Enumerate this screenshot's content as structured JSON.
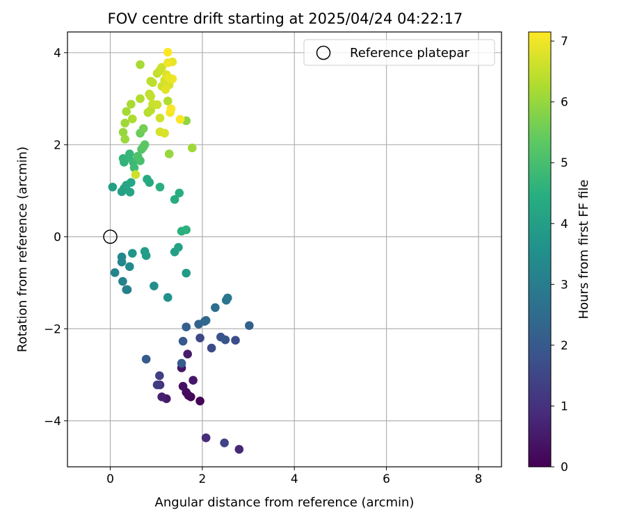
{
  "chart_data": {
    "type": "scatter",
    "title": "FOV centre drift starting at 2025/04/24 04:22:17",
    "xlabel": "Angular distance from reference (arcmin)",
    "ylabel": "Rotation from reference (arcmin)",
    "xlim": [
      -0.93,
      8.5
    ],
    "ylim": [
      -5.0,
      4.45
    ],
    "xticks": [
      0,
      2,
      4,
      6,
      8
    ],
    "yticks": [
      4,
      2,
      0,
      -2,
      -4
    ],
    "xtick_labels": [
      "0",
      "2",
      "4",
      "6",
      "8"
    ],
    "ytick_labels": [
      "4",
      "2",
      "0",
      "−2",
      "−4"
    ],
    "grid": true,
    "legend": {
      "position": "top-right",
      "entries": [
        "Reference platepar"
      ]
    },
    "reference_point": {
      "name": "Reference platepar",
      "x": 0.0,
      "y": 0.0
    },
    "colorbar": {
      "label": "Hours from first FF file",
      "colormap": "viridis",
      "range": [
        0,
        7.15
      ],
      "ticks": [
        0,
        1,
        2,
        3,
        4,
        5,
        6,
        7
      ],
      "tick_labels": [
        "0",
        "1",
        "2",
        "3",
        "4",
        "5",
        "6",
        "7"
      ]
    },
    "points": [
      {
        "x": 1.95,
        "y": -3.57,
        "t": 0.05
      },
      {
        "x": 1.75,
        "y": -3.48,
        "t": 0.12
      },
      {
        "x": 1.7,
        "y": -3.45,
        "t": 0.18
      },
      {
        "x": 1.65,
        "y": -3.38,
        "t": 0.25
      },
      {
        "x": 1.58,
        "y": -3.25,
        "t": 0.3
      },
      {
        "x": 1.55,
        "y": -2.85,
        "t": 0.4
      },
      {
        "x": 1.8,
        "y": -3.12,
        "t": 0.45
      },
      {
        "x": 1.68,
        "y": -2.55,
        "t": 0.55
      },
      {
        "x": 1.22,
        "y": -3.52,
        "t": 0.5
      },
      {
        "x": 1.12,
        "y": -3.48,
        "t": 0.65
      },
      {
        "x": 2.8,
        "y": -4.62,
        "t": 0.8
      },
      {
        "x": 2.08,
        "y": -4.37,
        "t": 0.9
      },
      {
        "x": 1.08,
        "y": -3.22,
        "t": 1.05
      },
      {
        "x": 1.02,
        "y": -3.22,
        "t": 1.25
      },
      {
        "x": 1.07,
        "y": -3.02,
        "t": 1.35
      },
      {
        "x": 2.48,
        "y": -4.48,
        "t": 1.45
      },
      {
        "x": 1.95,
        "y": -2.2,
        "t": 1.55
      },
      {
        "x": 2.2,
        "y": -2.42,
        "t": 1.6
      },
      {
        "x": 2.72,
        "y": -2.25,
        "t": 1.7
      },
      {
        "x": 2.4,
        "y": -2.18,
        "t": 1.8
      },
      {
        "x": 2.5,
        "y": -2.24,
        "t": 1.9
      },
      {
        "x": 1.58,
        "y": -2.27,
        "t": 2.0
      },
      {
        "x": 0.78,
        "y": -2.66,
        "t": 2.05
      },
      {
        "x": 1.55,
        "y": -2.75,
        "t": 2.1
      },
      {
        "x": 1.65,
        "y": -1.96,
        "t": 2.15
      },
      {
        "x": 3.02,
        "y": -1.93,
        "t": 2.2
      },
      {
        "x": 1.92,
        "y": -1.9,
        "t": 2.25
      },
      {
        "x": 2.05,
        "y": -1.84,
        "t": 2.35
      },
      {
        "x": 2.08,
        "y": -1.82,
        "t": 2.4
      },
      {
        "x": 2.28,
        "y": -1.54,
        "t": 2.55
      },
      {
        "x": 2.52,
        "y": -1.38,
        "t": 2.7
      },
      {
        "x": 2.55,
        "y": -1.33,
        "t": 2.8
      },
      {
        "x": 0.35,
        "y": -1.15,
        "t": 3.05
      },
      {
        "x": 0.37,
        "y": -1.15,
        "t": 3.1
      },
      {
        "x": 0.27,
        "y": -0.97,
        "t": 3.15
      },
      {
        "x": 0.1,
        "y": -0.78,
        "t": 3.2
      },
      {
        "x": 0.25,
        "y": -0.55,
        "t": 3.25
      },
      {
        "x": 0.25,
        "y": -0.44,
        "t": 3.3
      },
      {
        "x": 0.42,
        "y": -0.65,
        "t": 3.4
      },
      {
        "x": 0.95,
        "y": -1.07,
        "t": 3.5
      },
      {
        "x": 1.25,
        "y": -1.32,
        "t": 3.6
      },
      {
        "x": 0.48,
        "y": -0.36,
        "t": 3.7
      },
      {
        "x": 1.65,
        "y": -0.79,
        "t": 3.85
      },
      {
        "x": 0.75,
        "y": -0.32,
        "t": 3.9
      },
      {
        "x": 0.78,
        "y": -0.41,
        "t": 3.95
      },
      {
        "x": 1.4,
        "y": -0.33,
        "t": 4.0
      },
      {
        "x": 1.48,
        "y": -0.23,
        "t": 4.1
      },
      {
        "x": 1.55,
        "y": 0.12,
        "t": 4.5
      },
      {
        "x": 1.65,
        "y": 0.15,
        "t": 4.55
      },
      {
        "x": 1.4,
        "y": 0.81,
        "t": 4.4
      },
      {
        "x": 1.5,
        "y": 0.95,
        "t": 4.45
      },
      {
        "x": 0.05,
        "y": 1.08,
        "t": 4.0
      },
      {
        "x": 0.25,
        "y": 0.98,
        "t": 4.05
      },
      {
        "x": 0.3,
        "y": 1.05,
        "t": 4.1
      },
      {
        "x": 0.35,
        "y": 1.12,
        "t": 4.15
      },
      {
        "x": 0.43,
        "y": 0.97,
        "t": 4.2
      },
      {
        "x": 0.45,
        "y": 1.18,
        "t": 4.25
      },
      {
        "x": 0.85,
        "y": 1.18,
        "t": 4.3
      },
      {
        "x": 0.8,
        "y": 1.25,
        "t": 4.35
      },
      {
        "x": 1.08,
        "y": 1.08,
        "t": 4.5
      },
      {
        "x": 0.3,
        "y": 1.62,
        "t": 4.6
      },
      {
        "x": 0.28,
        "y": 1.7,
        "t": 4.65
      },
      {
        "x": 0.4,
        "y": 1.72,
        "t": 4.7
      },
      {
        "x": 0.42,
        "y": 1.8,
        "t": 4.75
      },
      {
        "x": 0.5,
        "y": 1.62,
        "t": 4.8
      },
      {
        "x": 0.52,
        "y": 1.5,
        "t": 4.85
      },
      {
        "x": 0.58,
        "y": 1.68,
        "t": 4.9
      },
      {
        "x": 0.65,
        "y": 1.65,
        "t": 5.0
      },
      {
        "x": 0.6,
        "y": 1.75,
        "t": 5.1
      },
      {
        "x": 0.68,
        "y": 1.9,
        "t": 5.2
      },
      {
        "x": 0.72,
        "y": 1.95,
        "t": 5.25
      },
      {
        "x": 0.75,
        "y": 2.0,
        "t": 5.3
      },
      {
        "x": 0.65,
        "y": 2.25,
        "t": 5.5
      },
      {
        "x": 0.72,
        "y": 2.35,
        "t": 5.6
      },
      {
        "x": 0.55,
        "y": 1.35,
        "t": 6.6
      },
      {
        "x": 1.28,
        "y": 1.8,
        "t": 6.0
      },
      {
        "x": 1.78,
        "y": 1.93,
        "t": 6.1
      },
      {
        "x": 1.65,
        "y": 2.52,
        "t": 5.9
      },
      {
        "x": 0.28,
        "y": 2.27,
        "t": 6.0
      },
      {
        "x": 0.32,
        "y": 2.12,
        "t": 6.05
      },
      {
        "x": 0.32,
        "y": 2.47,
        "t": 6.1
      },
      {
        "x": 0.35,
        "y": 2.72,
        "t": 6.15
      },
      {
        "x": 0.45,
        "y": 2.88,
        "t": 6.2
      },
      {
        "x": 0.48,
        "y": 2.56,
        "t": 6.25
      },
      {
        "x": 0.65,
        "y": 3.0,
        "t": 6.3
      },
      {
        "x": 0.82,
        "y": 2.7,
        "t": 6.35
      },
      {
        "x": 0.88,
        "y": 2.75,
        "t": 6.4
      },
      {
        "x": 0.85,
        "y": 3.1,
        "t": 6.45
      },
      {
        "x": 0.88,
        "y": 3.05,
        "t": 6.5
      },
      {
        "x": 0.92,
        "y": 2.88,
        "t": 6.55
      },
      {
        "x": 1.02,
        "y": 2.87,
        "t": 6.6
      },
      {
        "x": 1.08,
        "y": 2.58,
        "t": 6.65
      },
      {
        "x": 1.08,
        "y": 2.28,
        "t": 6.7
      },
      {
        "x": 1.18,
        "y": 2.25,
        "t": 6.75
      },
      {
        "x": 1.25,
        "y": 2.95,
        "t": 6.3
      },
      {
        "x": 0.65,
        "y": 3.74,
        "t": 6.2
      },
      {
        "x": 0.88,
        "y": 3.38,
        "t": 6.4
      },
      {
        "x": 0.92,
        "y": 3.35,
        "t": 6.45
      },
      {
        "x": 1.02,
        "y": 3.55,
        "t": 6.5
      },
      {
        "x": 1.08,
        "y": 3.62,
        "t": 6.55
      },
      {
        "x": 1.12,
        "y": 3.68,
        "t": 6.6
      },
      {
        "x": 1.12,
        "y": 3.27,
        "t": 6.65
      },
      {
        "x": 1.18,
        "y": 3.4,
        "t": 6.7
      },
      {
        "x": 1.22,
        "y": 3.52,
        "t": 6.8
      },
      {
        "x": 1.28,
        "y": 3.3,
        "t": 6.75
      },
      {
        "x": 1.35,
        "y": 3.8,
        "t": 6.9
      },
      {
        "x": 1.2,
        "y": 3.2,
        "t": 6.85
      },
      {
        "x": 1.25,
        "y": 3.78,
        "t": 7.0
      },
      {
        "x": 1.3,
        "y": 2.7,
        "t": 7.05
      },
      {
        "x": 1.32,
        "y": 2.78,
        "t": 7.1
      },
      {
        "x": 1.35,
        "y": 3.43,
        "t": 7.0
      },
      {
        "x": 1.25,
        "y": 4.01,
        "t": 7.15
      },
      {
        "x": 1.52,
        "y": 2.55,
        "t": 7.1
      },
      {
        "x": 1.28,
        "y": 3.45,
        "t": 6.95
      }
    ]
  }
}
